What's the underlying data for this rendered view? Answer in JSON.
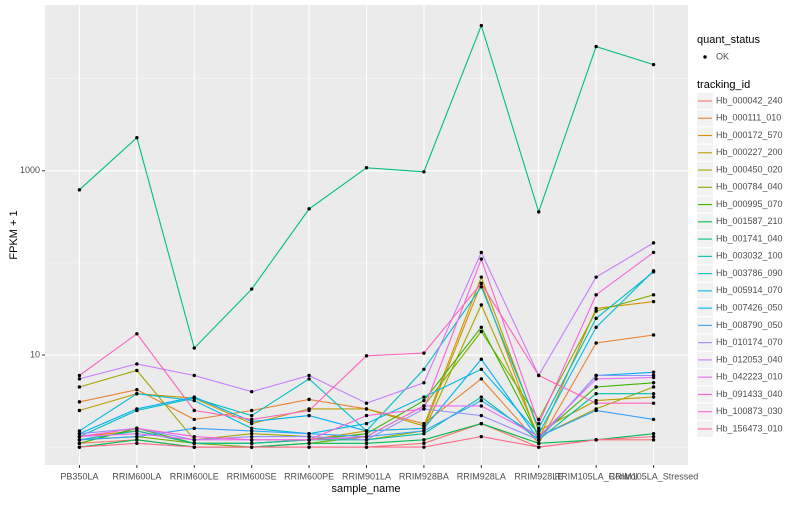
{
  "chart_data": {
    "type": "line",
    "x_label": "sample_name",
    "y_label": "FPKM + 1",
    "log_y": true,
    "grid": true,
    "ylim": [
      0.64,
      63000
    ],
    "yticks": [
      10,
      1000
    ],
    "minor_yticks": [
      1,
      100,
      10000
    ],
    "status_legend": {
      "title": "quant_status",
      "labels": [
        "OK"
      ]
    },
    "legend_title": "tracking_id",
    "categories": [
      "PB350LA",
      "RRIM600LA",
      "RRIM600LE",
      "RRIM600SE",
      "RRIM600PE",
      "RRIM901LA",
      "RRIM928BA",
      "RRIM928LA",
      "RRIM928LE",
      "RRIM105LA_Control",
      "RRIM105LA_Stressed"
    ],
    "series": [
      {
        "name": "Hb_000042_240",
        "color": "#F8766D",
        "values": [
          1.1,
          1.2,
          1,
          1,
          1,
          1,
          1.1,
          1.8,
          1,
          1.2,
          1.2
        ]
      },
      {
        "name": "Hb_000111_010",
        "color": "#EA8331",
        "values": [
          3.1,
          4.2,
          2,
          2.5,
          3.3,
          2.6,
          1.8,
          5.5,
          1.1,
          13.5,
          16.5
        ]
      },
      {
        "name": "Hb_000172_570",
        "color": "#D89000",
        "values": [
          1.3,
          1.5,
          1.1,
          1.1,
          1.2,
          1.5,
          1.6,
          60,
          1.2,
          32,
          38
        ]
      },
      {
        "name": "Hb_000227_200",
        "color": "#C09B00",
        "values": [
          2.5,
          3.8,
          3.4,
          1.8,
          2.6,
          2.6,
          1.7,
          70,
          1.5,
          3.2,
          3.5
        ]
      },
      {
        "name": "Hb_000450_020",
        "color": "#A3A500",
        "values": [
          4.5,
          6.8,
          1.2,
          1.4,
          1.3,
          1.2,
          1.5,
          35,
          1.3,
          2.6,
          4.5
        ]
      },
      {
        "name": "Hb_000784_040",
        "color": "#7CAE00",
        "values": [
          1.2,
          1.3,
          1.1,
          1,
          1.1,
          1.3,
          2.8,
          18,
          2,
          30,
          45
        ]
      },
      {
        "name": "Hb_000995_070",
        "color": "#39B600",
        "values": [
          1.1,
          1.6,
          1.1,
          1.1,
          1.2,
          1.4,
          3.2,
          20,
          1.3,
          4.5,
          5
        ]
      },
      {
        "name": "Hb_001587_210",
        "color": "#00BB4E",
        "values": [
          1,
          1.2,
          1,
          1,
          1.1,
          1.1,
          1.2,
          1.8,
          1.1,
          1.2,
          1.4
        ]
      },
      {
        "name": "Hb_001741_040",
        "color": "#00BF7D",
        "values": [
          621,
          2286,
          11.9,
          52,
          386,
          1078,
          975,
          37700,
          358,
          22300,
          14200
        ]
      },
      {
        "name": "Hb_003032_100",
        "color": "#00C1A3",
        "values": [
          1.2,
          1.5,
          1.1,
          1.1,
          1.2,
          1.2,
          1.4,
          3.5,
          1.2,
          3.8,
          3.8
        ]
      },
      {
        "name": "Hb_003786_090",
        "color": "#00BFC4",
        "values": [
          1.3,
          2.5,
          3.4,
          2.2,
          5.5,
          1.5,
          7,
          55,
          1.6,
          25,
          80
        ]
      },
      {
        "name": "Hb_005914_070",
        "color": "#00BAE0",
        "values": [
          1.5,
          3.8,
          3.2,
          1.6,
          1.4,
          1.8,
          3.5,
          7,
          1.4,
          20,
          82
        ]
      },
      {
        "name": "Hb_007426_050",
        "color": "#00B0F6",
        "values": [
          1.4,
          2.6,
          3.5,
          1.9,
          2.2,
          1.5,
          1.6,
          9,
          1.2,
          6,
          6.5
        ]
      },
      {
        "name": "Hb_008790_050",
        "color": "#35A2FF",
        "values": [
          1.2,
          1.3,
          1.6,
          1.5,
          1.4,
          1.3,
          1.5,
          3.2,
          1.3,
          2.5,
          2
        ]
      },
      {
        "name": "Hb_010174_070",
        "color": "#9590FF",
        "values": [
          1.4,
          1.6,
          1.2,
          1.3,
          1.3,
          1.2,
          2.6,
          2.2,
          1.2,
          6,
          6
        ]
      },
      {
        "name": "Hb_012053_040",
        "color": "#C77CFF",
        "values": [
          5.5,
          8,
          6,
          4,
          6,
          3,
          5,
          130,
          6,
          70,
          165
        ]
      },
      {
        "name": "Hb_042223_010",
        "color": "#E76BF3",
        "values": [
          1.3,
          1.4,
          1.2,
          1.2,
          1.2,
          1.3,
          2.8,
          2.8,
          1.3,
          5.5,
          5.7
        ]
      },
      {
        "name": "Hb_091433_040",
        "color": "#FA62DB",
        "values": [
          1.3,
          1.6,
          1.3,
          1.2,
          1.2,
          2.2,
          2.6,
          110,
          1.8,
          45,
          130
        ]
      },
      {
        "name": "Hb_100873_030",
        "color": "#FF62BC",
        "values": [
          6,
          17,
          2.5,
          2,
          2.5,
          9.8,
          10.5,
          60,
          6,
          3,
          3
        ]
      },
      {
        "name": "Hb_156473_010",
        "color": "#FF6C91",
        "values": [
          1,
          1.1,
          1,
          1,
          1,
          1,
          1,
          1.3,
          1,
          1.2,
          1.3
        ]
      }
    ]
  }
}
